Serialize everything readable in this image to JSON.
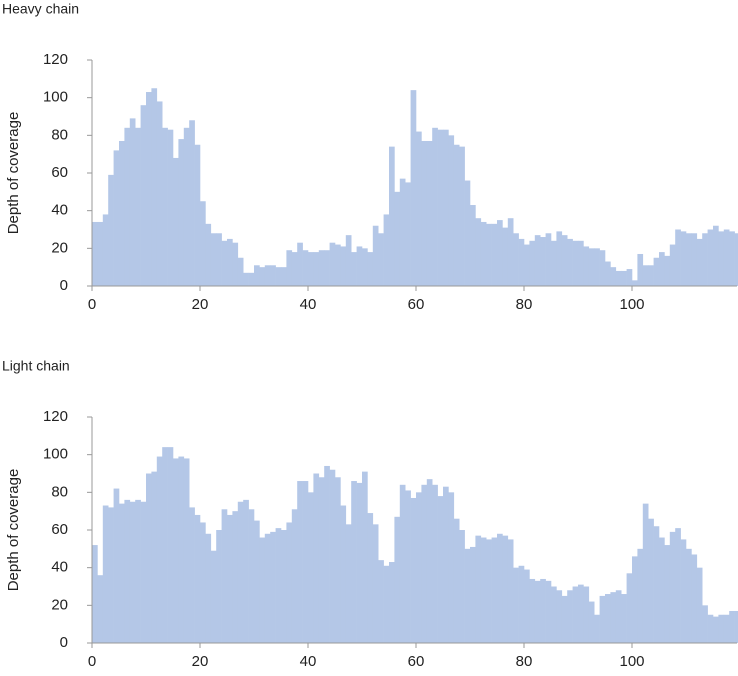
{
  "chart_data": [
    {
      "type": "bar",
      "title": "Heavy chain",
      "ylabel": "Depth of coverage",
      "color": "#b4c7e7",
      "x": [
        0,
        1,
        2,
        3,
        4,
        5,
        6,
        7,
        8,
        9,
        10,
        11,
        12,
        13,
        14,
        15,
        16,
        17,
        18,
        19,
        20,
        21,
        22,
        23,
        24,
        25,
        26,
        27,
        28,
        29,
        30,
        31,
        32,
        33,
        34,
        35,
        36,
        37,
        38,
        39,
        40,
        41,
        42,
        43,
        44,
        45,
        46,
        47,
        48,
        49,
        50,
        51,
        52,
        53,
        54,
        55,
        56,
        57,
        58,
        59,
        60,
        61,
        62,
        63,
        64,
        65,
        66,
        67,
        68,
        69,
        70,
        71,
        72,
        73,
        74,
        75,
        76,
        77,
        78,
        79,
        80,
        81,
        82,
        83,
        84,
        85,
        86,
        87,
        88,
        89,
        90,
        91,
        92,
        93,
        94,
        95,
        96,
        97,
        98,
        99,
        100,
        101,
        102,
        103,
        104,
        105,
        106,
        107,
        108,
        109,
        110,
        111,
        112,
        113,
        114,
        115,
        116,
        117,
        118,
        119
      ],
      "values": [
        34,
        34,
        38,
        59,
        72,
        77,
        84,
        89,
        84,
        96,
        103,
        105,
        98,
        84,
        83,
        68,
        78,
        84,
        88,
        75,
        45,
        33,
        28,
        28,
        24,
        25,
        23,
        15,
        7,
        7,
        11,
        10,
        11,
        11,
        10,
        10,
        19,
        18,
        23,
        19,
        18,
        18,
        19,
        19,
        23,
        22,
        21,
        27,
        18,
        21,
        20,
        18,
        32,
        28,
        38,
        74,
        50,
        57,
        55,
        104,
        82,
        77,
        77,
        84,
        83,
        83,
        80,
        75,
        74,
        56,
        43,
        36,
        34,
        33,
        33,
        35,
        31,
        36,
        28,
        25,
        22,
        24,
        27,
        26,
        28,
        24,
        29,
        27,
        25,
        24,
        24,
        21,
        20,
        20,
        19,
        13,
        10,
        8,
        8,
        9,
        3,
        17,
        11,
        11,
        15,
        18,
        16,
        22,
        30,
        29,
        28,
        28,
        25,
        28,
        30,
        32,
        29,
        30,
        29,
        28
      ],
      "xlim": [
        0,
        120
      ],
      "ylim": [
        0,
        120
      ],
      "xticks": [
        0,
        20,
        40,
        60,
        80,
        100
      ],
      "yticks": [
        0,
        20,
        40,
        60,
        80,
        100,
        120
      ]
    },
    {
      "type": "bar",
      "title": "Light chain",
      "ylabel": "Depth of coverage",
      "color": "#b4c7e7",
      "x": [
        0,
        1,
        2,
        3,
        4,
        5,
        6,
        7,
        8,
        9,
        10,
        11,
        12,
        13,
        14,
        15,
        16,
        17,
        18,
        19,
        20,
        21,
        22,
        23,
        24,
        25,
        26,
        27,
        28,
        29,
        30,
        31,
        32,
        33,
        34,
        35,
        36,
        37,
        38,
        39,
        40,
        41,
        42,
        43,
        44,
        45,
        46,
        47,
        48,
        49,
        50,
        51,
        52,
        53,
        54,
        55,
        56,
        57,
        58,
        59,
        60,
        61,
        62,
        63,
        64,
        65,
        66,
        67,
        68,
        69,
        70,
        71,
        72,
        73,
        74,
        75,
        76,
        77,
        78,
        79,
        80,
        81,
        82,
        83,
        84,
        85,
        86,
        87,
        88,
        89,
        90,
        91,
        92,
        93,
        94,
        95,
        96,
        97,
        98,
        99,
        100,
        101,
        102,
        103,
        104,
        105,
        106,
        107,
        108,
        109,
        110,
        111,
        112,
        113,
        114,
        115,
        116,
        117,
        118,
        119
      ],
      "values": [
        52,
        36,
        73,
        72,
        82,
        74,
        76,
        75,
        76,
        75,
        90,
        91,
        99,
        104,
        104,
        98,
        99,
        98,
        72,
        68,
        64,
        58,
        49,
        60,
        71,
        68,
        70,
        75,
        76,
        71,
        65,
        56,
        58,
        59,
        61,
        60,
        64,
        71,
        86,
        86,
        80,
        90,
        88,
        94,
        92,
        88,
        73,
        63,
        86,
        85,
        91,
        69,
        63,
        44,
        41,
        43,
        67,
        84,
        81,
        77,
        80,
        84,
        87,
        84,
        78,
        83,
        80,
        66,
        60,
        50,
        51,
        57,
        56,
        55,
        56,
        58,
        57,
        55,
        40,
        41,
        39,
        34,
        33,
        34,
        33,
        30,
        28,
        25,
        28,
        30,
        31,
        30,
        22,
        15,
        25,
        26,
        27,
        28,
        26,
        37,
        46,
        50,
        74,
        66,
        62,
        56,
        52,
        59,
        61,
        55,
        50,
        47,
        40,
        20,
        15,
        14,
        15,
        15,
        17,
        17
      ],
      "xlim": [
        0,
        120
      ],
      "ylim": [
        0,
        120
      ],
      "xticks": [
        0,
        20,
        40,
        60,
        80,
        100
      ],
      "yticks": [
        0,
        20,
        40,
        60,
        80,
        100,
        120
      ]
    }
  ]
}
